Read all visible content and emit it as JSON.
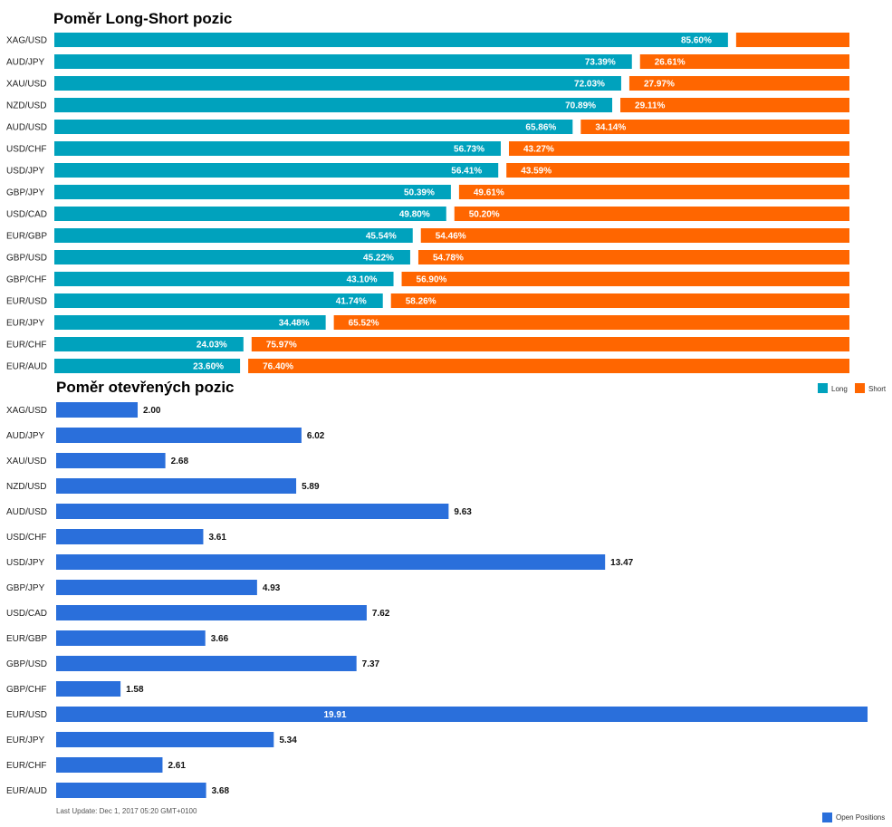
{
  "colors": {
    "long": "#00a2bd",
    "short": "#ff6600",
    "open": "#2a6fdb"
  },
  "chart_data": [
    {
      "type": "bar",
      "orientation": "horizontal",
      "stacked": true,
      "title": "Poměr Long-Short pozic",
      "categories": [
        "XAG/USD",
        "AUD/JPY",
        "XAU/USD",
        "NZD/USD",
        "AUD/USD",
        "USD/CHF",
        "USD/JPY",
        "GBP/JPY",
        "USD/CAD",
        "EUR/GBP",
        "GBP/USD",
        "GBP/CHF",
        "EUR/USD",
        "EUR/JPY",
        "EUR/CHF",
        "EUR/AUD"
      ],
      "series": [
        {
          "name": "Long",
          "values": [
            85.6,
            73.39,
            72.03,
            70.89,
            65.86,
            56.73,
            56.41,
            50.39,
            49.8,
            45.54,
            45.22,
            43.1,
            41.74,
            34.48,
            24.03,
            23.6
          ],
          "labels": [
            "85.60%",
            "73.39%",
            "72.03%",
            "70.89%",
            "65.86%",
            "56.73%",
            "56.41%",
            "50.39%",
            "49.80%",
            "45.54%",
            "45.22%",
            "43.10%",
            "41.74%",
            "34.48%",
            "24.03%",
            "23.60%"
          ]
        },
        {
          "name": "Short",
          "values": [
            14.4,
            26.61,
            27.97,
            29.11,
            34.14,
            43.27,
            43.59,
            49.61,
            50.2,
            54.46,
            54.78,
            56.9,
            58.26,
            65.52,
            75.97,
            76.4
          ],
          "labels": [
            "",
            "26.61%",
            "27.97%",
            "29.11%",
            "34.14%",
            "43.27%",
            "43.59%",
            "49.61%",
            "50.20%",
            "54.46%",
            "54.78%",
            "56.90%",
            "58.26%",
            "65.52%",
            "75.97%",
            "76.40%"
          ]
        }
      ],
      "legend": {
        "position": "bottom-right"
      }
    },
    {
      "type": "bar",
      "orientation": "horizontal",
      "title": "Poměr otevřených pozic",
      "categories": [
        "XAG/USD",
        "AUD/JPY",
        "XAU/USD",
        "NZD/USD",
        "AUD/USD",
        "USD/CHF",
        "USD/JPY",
        "GBP/JPY",
        "USD/CAD",
        "EUR/GBP",
        "GBP/USD",
        "GBP/CHF",
        "EUR/USD",
        "EUR/JPY",
        "EUR/CHF",
        "EUR/AUD"
      ],
      "series": [
        {
          "name": "Open Positions",
          "values": [
            2.0,
            6.02,
            2.68,
            5.89,
            9.63,
            3.61,
            13.47,
            4.93,
            7.62,
            3.66,
            7.37,
            1.58,
            19.91,
            5.34,
            2.61,
            3.68
          ],
          "labels": [
            "2.00",
            "6.02",
            "2.68",
            "5.89",
            "9.63",
            "3.61",
            "13.47",
            "4.93",
            "7.62",
            "3.66",
            "7.37",
            "1.58",
            "19.91",
            "5.34",
            "2.61",
            "3.68"
          ]
        }
      ],
      "legend": {
        "position": "bottom-right"
      }
    }
  ],
  "footer": {
    "last_update": "Last Update: Dec 1, 2017 05:20 GMT+0100"
  }
}
